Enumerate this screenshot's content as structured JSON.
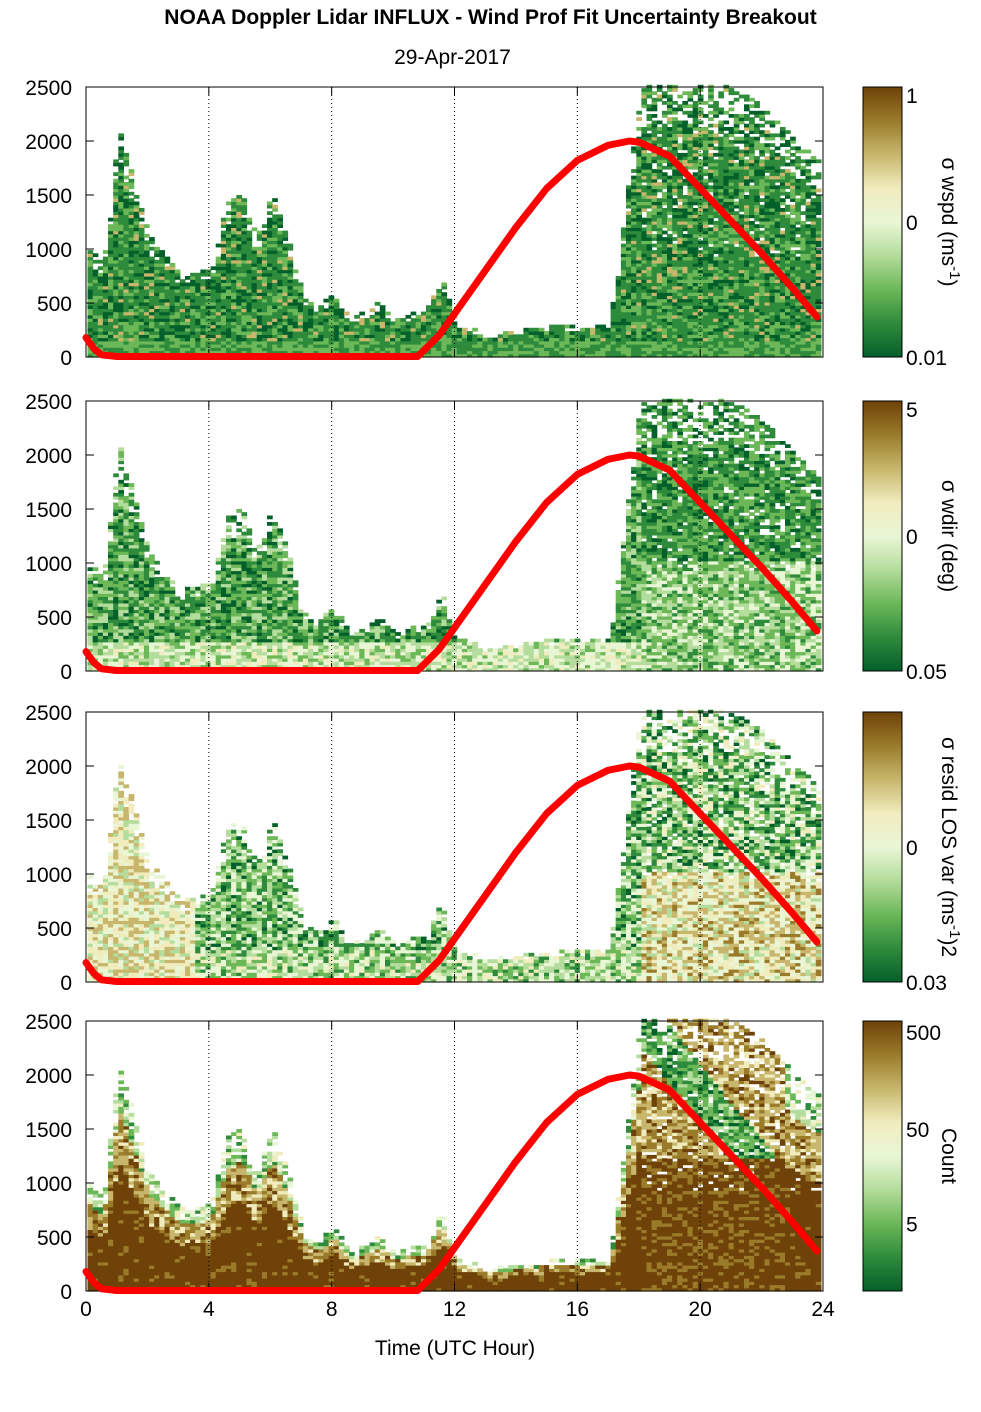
{
  "figure": {
    "title": "NOAA Doppler Lidar INFLUX - Wind Prof Fit Uncertainty Breakout",
    "subtitle": "29-Apr-2017",
    "xlabel": "Time (UTC Hour)"
  },
  "colors": {
    "sun_curve": "#ff0000",
    "cmap": [
      "#04602a",
      "#2e8b3c",
      "#6cb858",
      "#b4dc9c",
      "#e9f6d6",
      "#f1ecbe",
      "#c7b66b",
      "#9a7b2a",
      "#6e4208"
    ]
  },
  "chart_data": [
    {
      "type": "heatmap",
      "panel": 1,
      "colorbar_label": "σ wspd (ms-1)",
      "colorbar_label_parts": {
        "main": "σ wspd (ms",
        "sup": "-1",
        "end": ")"
      },
      "colorbar_ticks": [
        {
          "value": "1",
          "level": 1.0
        },
        {
          "value": "0",
          "level": 0.5
        },
        {
          "value": "0.01",
          "level": 0.0
        }
      ],
      "x_ticks": [
        "0",
        "4",
        "8",
        "12",
        "16",
        "20",
        "24"
      ],
      "y_ticks": [
        "0",
        "500",
        "1000",
        "1500",
        "2000",
        "2500"
      ],
      "xlim": [
        0,
        24
      ],
      "ylim": [
        0,
        2500
      ],
      "fill_profile": "sigma_wspd"
    },
    {
      "type": "heatmap",
      "panel": 2,
      "colorbar_label": "σ wdir (deg)",
      "colorbar_label_parts": {
        "main": "σ wdir (deg)",
        "sup": "",
        "end": ""
      },
      "colorbar_ticks": [
        {
          "value": "5",
          "level": 1.0
        },
        {
          "value": "0",
          "level": 0.5
        },
        {
          "value": "0.05",
          "level": 0.0
        }
      ],
      "x_ticks": [
        "0",
        "4",
        "8",
        "12",
        "16",
        "20",
        "24"
      ],
      "y_ticks": [
        "0",
        "500",
        "1000",
        "1500",
        "2000",
        "2500"
      ],
      "xlim": [
        0,
        24
      ],
      "ylim": [
        0,
        2500
      ],
      "fill_profile": "sigma_wdir"
    },
    {
      "type": "heatmap",
      "panel": 3,
      "colorbar_label": "σ resid LOS var (ms-1)2",
      "colorbar_label_parts": {
        "main": "σ resid LOS var (ms",
        "sup": "-1",
        "end": ")2"
      },
      "colorbar_ticks": [
        {
          "value": "0",
          "level": 0.5
        },
        {
          "value": "0.03",
          "level": 0.0
        }
      ],
      "x_ticks": [
        "0",
        "4",
        "8",
        "12",
        "16",
        "20",
        "24"
      ],
      "y_ticks": [
        "0",
        "500",
        "1000",
        "1500",
        "2000",
        "2500"
      ],
      "xlim": [
        0,
        24
      ],
      "ylim": [
        0,
        2500
      ],
      "fill_profile": "sigma_resid"
    },
    {
      "type": "heatmap",
      "panel": 4,
      "colorbar_label": "Count",
      "colorbar_label_parts": {
        "main": "Count",
        "sup": "",
        "end": ""
      },
      "colorbar_ticks": [
        {
          "value": "500",
          "level": 0.96
        },
        {
          "value": "50",
          "level": 0.6
        },
        {
          "value": "5",
          "level": 0.25
        }
      ],
      "x_ticks": [
        "0",
        "4",
        "8",
        "12",
        "16",
        "20",
        "24"
      ],
      "y_ticks": [
        "0",
        "500",
        "1000",
        "1500",
        "2000",
        "2500"
      ],
      "xlim": [
        0,
        24
      ],
      "ylim": [
        0,
        2500
      ],
      "fill_profile": "count"
    }
  ],
  "overlay_curve": {
    "name": "",
    "x": [
      0,
      0.25,
      0.5,
      1,
      2,
      4,
      6,
      8,
      10,
      10.8,
      11.5,
      12,
      13,
      14,
      15,
      16,
      17,
      17.7,
      18,
      19,
      20,
      21,
      22,
      23,
      23.8
    ],
    "y": [
      180,
      80,
      20,
      5,
      5,
      5,
      5,
      5,
      5,
      5,
      200,
      400,
      800,
      1200,
      1560,
      1820,
      1960,
      2000,
      1990,
      1860,
      1560,
      1260,
      960,
      640,
      370
    ]
  },
  "data_envelope": {
    "x": [
      0,
      0.5,
      1,
      1.5,
      2,
      3,
      4,
      4.5,
      5,
      5.5,
      6,
      6.5,
      7,
      7.5,
      8,
      8.5,
      9,
      9.5,
      10,
      10.5,
      11,
      11.5,
      12,
      13,
      14,
      15,
      16,
      17,
      18,
      18.5,
      19,
      20,
      21,
      22,
      23,
      23.8
    ],
    "y": [
      1000,
      850,
      2100,
      1600,
      1100,
      750,
      800,
      1400,
      1500,
      1100,
      1500,
      1100,
      550,
      450,
      600,
      350,
      400,
      500,
      330,
      400,
      400,
      750,
      300,
      200,
      230,
      280,
      270,
      300,
      2500,
      2500,
      2500,
      2500,
      2500,
      2300,
      2000,
      1800
    ]
  }
}
